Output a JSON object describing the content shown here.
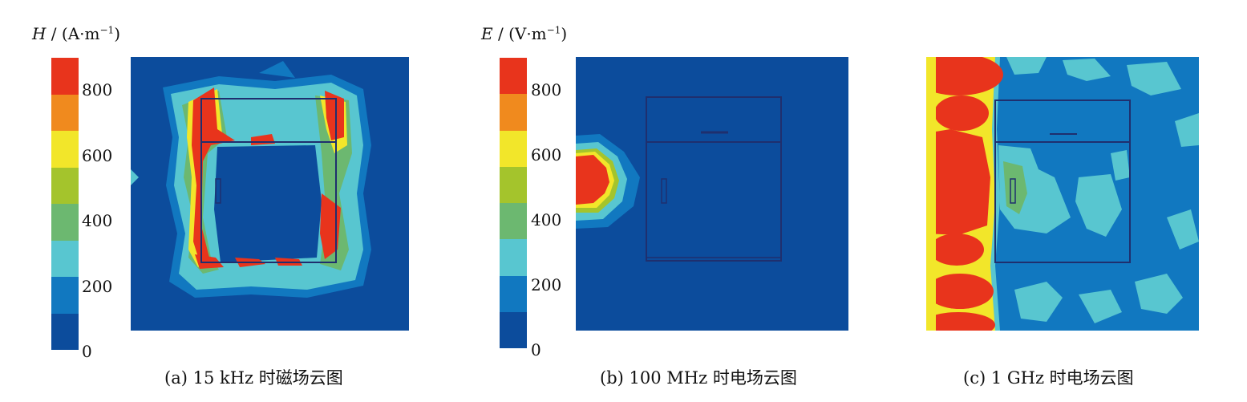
{
  "colorbars": [
    {
      "title_var": "H",
      "title_sep": " / (",
      "title_unit": "A·m",
      "title_exp": "−1",
      "title_close": ")",
      "ticks": [
        "800",
        "600",
        "400",
        "200",
        "0"
      ]
    },
    {
      "title_var": "E",
      "title_sep": " / (",
      "title_unit": "V·m",
      "title_exp": "−1",
      "title_close": ")",
      "ticks": [
        "800",
        "600",
        "400",
        "200",
        "0"
      ]
    }
  ],
  "colorbar_levels": [
    "#e8341c",
    "#f08a1e",
    "#f2e62a",
    "#a4c42c",
    "#6cb870",
    "#58c6d0",
    "#1178c0",
    "#0c4c9c"
  ],
  "captions": [
    "(a)  15 kHz 时磁场云图",
    "(b)  100 MHz 时电场云图",
    "(c)  1 GHz 时电场云图"
  ]
}
